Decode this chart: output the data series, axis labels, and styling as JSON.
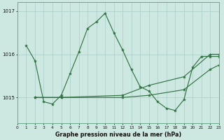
{
  "title": "Graphe pression niveau de la mer (hPa)",
  "background_color": "#cce8e0",
  "grid_color": "#aacec8",
  "line_color": "#2d6e3e",
  "ylim": [
    1014.4,
    1017.2
  ],
  "xlim": [
    0,
    23
  ],
  "yticks": [
    1015,
    1016,
    1017
  ],
  "xticks": [
    0,
    1,
    2,
    3,
    4,
    5,
    6,
    7,
    8,
    9,
    10,
    11,
    12,
    13,
    14,
    15,
    16,
    17,
    18,
    19,
    20,
    21,
    22,
    23
  ],
  "line1_x": [
    1,
    2,
    3,
    4,
    5,
    6,
    7,
    8,
    9,
    10,
    11,
    12,
    13,
    14,
    15,
    16,
    17,
    18,
    19,
    20,
    21,
    22,
    23
  ],
  "line1_y": [
    1016.2,
    1015.85,
    1014.9,
    1014.85,
    1015.05,
    1015.55,
    1016.05,
    1016.6,
    1016.75,
    1016.95,
    1016.5,
    1016.1,
    1015.65,
    1015.25,
    1015.15,
    1014.9,
    1014.75,
    1014.7,
    1014.95,
    1015.7,
    1015.95,
    1015.95,
    1015.95
  ],
  "line2_x": [
    2,
    5,
    12,
    15,
    19,
    22,
    23
  ],
  "line2_y": [
    1015.0,
    1015.0,
    1015.0,
    1015.05,
    1015.18,
    1015.65,
    1015.75
  ],
  "line3_x": [
    2,
    5,
    12,
    15,
    19,
    22,
    23
  ],
  "line3_y": [
    1015.0,
    1015.0,
    1015.05,
    1015.28,
    1015.48,
    1016.0,
    1016.0
  ]
}
